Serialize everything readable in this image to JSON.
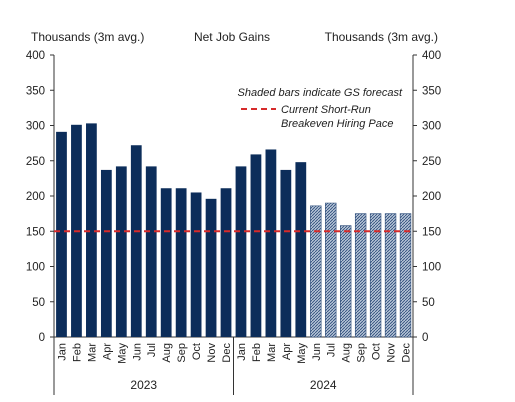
{
  "chart_data": {
    "type": "bar",
    "title": "Net Job Gains",
    "left_unit_label": "Thousands  (3m avg.)",
    "right_unit_label": "Thousands  (3m avg.)",
    "ylim": [
      0,
      400
    ],
    "y_ticks": [
      0,
      50,
      100,
      150,
      200,
      250,
      300,
      350,
      400
    ],
    "categories": [
      "Jan",
      "Feb",
      "Mar",
      "Apr",
      "May",
      "Jun",
      "Jul",
      "Aug",
      "Sep",
      "Oct",
      "Nov",
      "Dec",
      "Jan",
      "Feb",
      "Mar",
      "Apr",
      "May",
      "Jun",
      "Jul",
      "Aug",
      "Sep",
      "Oct",
      "Nov",
      "Dec"
    ],
    "years": [
      {
        "label": "2023",
        "months": 12
      },
      {
        "label": "2024",
        "months": 12
      }
    ],
    "series": [
      {
        "values": [
          291,
          301,
          303,
          237,
          242,
          272,
          242,
          211,
          211,
          205,
          196,
          211,
          242,
          259,
          266,
          237,
          248,
          186,
          190,
          158,
          175,
          175,
          175,
          175
        ],
        "forecast": [
          false,
          false,
          false,
          false,
          false,
          false,
          false,
          false,
          false,
          false,
          false,
          false,
          false,
          false,
          false,
          false,
          false,
          true,
          true,
          true,
          true,
          true,
          true,
          true
        ]
      }
    ],
    "reference_line": {
      "value": 150,
      "label": "Current Short-Run Breakeven Hiring Pace",
      "label_lines": [
        "Current Short-Run",
        "Breakeven Hiring Pace"
      ]
    },
    "annotation": "Shaded bars indicate GS forecast",
    "colors": {
      "actual_bar": "#0c2d5a",
      "forecast_bar": "#b5c3d6",
      "forecast_stripe": "#2a4a78",
      "reference_line": "#d62b2b",
      "axis": "#333333"
    }
  }
}
